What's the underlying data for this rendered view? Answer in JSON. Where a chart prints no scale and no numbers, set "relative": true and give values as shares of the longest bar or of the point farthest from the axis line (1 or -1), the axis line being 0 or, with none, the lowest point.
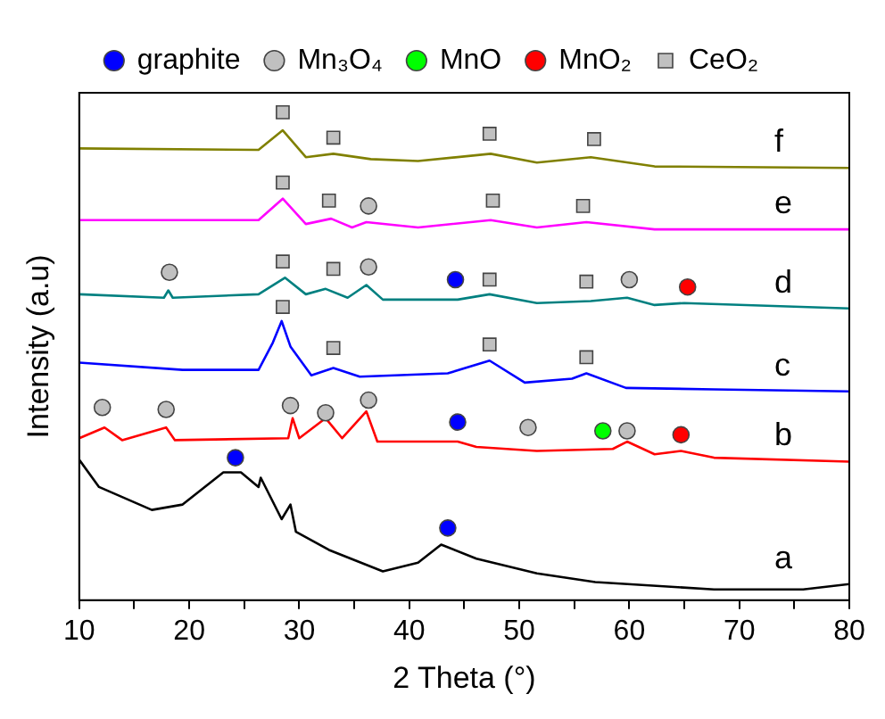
{
  "chart_data": {
    "type": "line",
    "xlabel": "2 Theta (°)",
    "ylabel": "Intensity (a.u)",
    "relative": true,
    "legend": "top",
    "grid": false,
    "tick_labels": "x",
    "xlim": [
      10,
      80
    ],
    "xticks": [
      10,
      {
        "value": 15,
        "label": null
      },
      20,
      {
        "value": 25,
        "label": null
      },
      30,
      {
        "value": 35,
        "label": null
      },
      40,
      {
        "value": 45,
        "label": null
      },
      50,
      {
        "value": 55,
        "label": null
      },
      60,
      {
        "value": 65,
        "label": null
      },
      70,
      {
        "value": 75,
        "label": null
      },
      80
    ],
    "series": [
      {
        "type": "line",
        "name": "f",
        "marker": "none",
        "color": "#808000",
        "x": [
          10,
          26.3,
          28.5,
          30.6,
          33.1,
          36.5,
          40.8,
          47.4,
          51.6,
          56.5,
          62.3,
          80
        ],
        "values": [
          0.926,
          0.923,
          0.963,
          0.908,
          0.915,
          0.904,
          0.9,
          0.915,
          0.897,
          0.908,
          0.889,
          0.886
        ]
      },
      {
        "type": "line",
        "name": "e",
        "marker": "none",
        "color": "#ff00ff",
        "x": [
          10,
          26.3,
          28.5,
          30.6,
          32.9,
          34.8,
          36.1,
          40.8,
          47.4,
          51.6,
          56.1,
          62.3,
          80
        ],
        "values": [
          0.779,
          0.779,
          0.823,
          0.771,
          0.782,
          0.764,
          0.775,
          0.764,
          0.779,
          0.764,
          0.775,
          0.76,
          0.76
        ]
      },
      {
        "type": "line",
        "name": "d",
        "marker": "none",
        "color": "#008080",
        "x": [
          10,
          17.7,
          18.1,
          18.5,
          26.3,
          28.7,
          30.6,
          32.4,
          34.4,
          36.1,
          37.6,
          44.4,
          47.3,
          51.6,
          56.5,
          59.8,
          62.3,
          65.0,
          80
        ],
        "values": [
          0.627,
          0.62,
          0.635,
          0.62,
          0.627,
          0.661,
          0.627,
          0.638,
          0.62,
          0.646,
          0.616,
          0.616,
          0.627,
          0.609,
          0.613,
          0.62,
          0.605,
          0.609,
          0.598
        ]
      },
      {
        "type": "line",
        "name": "c",
        "marker": "none",
        "color": "#0000ff",
        "x": [
          10,
          19.4,
          26.3,
          27.6,
          28.4,
          29.2,
          31.1,
          33.1,
          35.5,
          43.5,
          47.3,
          50.5,
          54.8,
          56.1,
          59.7,
          67.7,
          80
        ],
        "values": [
          0.487,
          0.472,
          0.472,
          0.528,
          0.572,
          0.52,
          0.461,
          0.476,
          0.458,
          0.465,
          0.491,
          0.446,
          0.454,
          0.465,
          0.435,
          0.432,
          0.428
        ]
      },
      {
        "type": "line",
        "name": "b",
        "marker": "none",
        "color": "#ff0000",
        "x": [
          10,
          12.3,
          13.9,
          17.9,
          18.7,
          29.0,
          29.4,
          30.0,
          32.4,
          33.9,
          36.1,
          37.1,
          44.4,
          46.1,
          51.6,
          58.5,
          59.8,
          62.3,
          64.7,
          67.7,
          80
        ],
        "values": [
          0.332,
          0.354,
          0.328,
          0.354,
          0.328,
          0.332,
          0.373,
          0.332,
          0.373,
          0.332,
          0.387,
          0.325,
          0.325,
          0.314,
          0.306,
          0.31,
          0.325,
          0.299,
          0.306,
          0.292,
          0.284
        ]
      },
      {
        "type": "line",
        "name": "a",
        "marker": "none",
        "color": "#000000",
        "x": [
          10,
          11.8,
          16.6,
          19.4,
          23.1,
          24.7,
          26.3,
          26.5,
          28.4,
          29.2,
          29.7,
          32.7,
          37.6,
          40.8,
          42.9,
          46.1,
          51.6,
          56.9,
          67.7,
          75.8,
          80
        ],
        "values": [
          0.288,
          0.232,
          0.185,
          0.196,
          0.262,
          0.262,
          0.232,
          0.251,
          0.166,
          0.196,
          0.14,
          0.103,
          0.059,
          0.077,
          0.114,
          0.085,
          0.055,
          0.037,
          0.022,
          0.022,
          0.033
        ]
      },
      {
        "type": "scatter",
        "name": "graphite",
        "marker": "circle",
        "color": "#0000ff",
        "x": [
          24.2,
          43.5,
          44.4,
          44.2
        ],
        "values": [
          0.292,
          0.148,
          0.365,
          0.657
        ]
      },
      {
        "type": "scatter",
        "name": "Mn₃O₄",
        "marker": "circle",
        "color": "#c0c0c0",
        "x": [
          36.3,
          18.2,
          36.3,
          60.0,
          12.1,
          17.9,
          29.2,
          32.4,
          36.3,
          50.8,
          59.8
        ],
        "values": [
          0.808,
          0.672,
          0.683,
          0.657,
          0.395,
          0.391,
          0.399,
          0.384,
          0.41,
          0.354,
          0.347
        ]
      },
      {
        "type": "scatter",
        "name": "MnO",
        "marker": "circle",
        "color": "#00ff00",
        "x": [
          57.6
        ],
        "values": [
          0.347
        ]
      },
      {
        "type": "scatter",
        "name": "MnO₂",
        "marker": "circle",
        "color": "#ff0000",
        "x": [
          65.3,
          64.7
        ],
        "values": [
          0.642,
          0.339
        ]
      },
      {
        "type": "scatter",
        "name": "CeO₂",
        "marker": "square",
        "color": "#c0c0c0",
        "x": [
          28.5,
          33.1,
          47.3,
          56.8,
          28.5,
          32.7,
          47.6,
          55.8,
          28.5,
          33.1,
          47.3,
          56.1,
          28.5,
          33.1,
          47.3,
          56.1
        ],
        "values": [
          1.0,
          0.948,
          0.956,
          0.945,
          0.856,
          0.819,
          0.819,
          0.808,
          0.694,
          0.679,
          0.657,
          0.653,
          0.601,
          0.517,
          0.524,
          0.498
        ]
      }
    ]
  }
}
